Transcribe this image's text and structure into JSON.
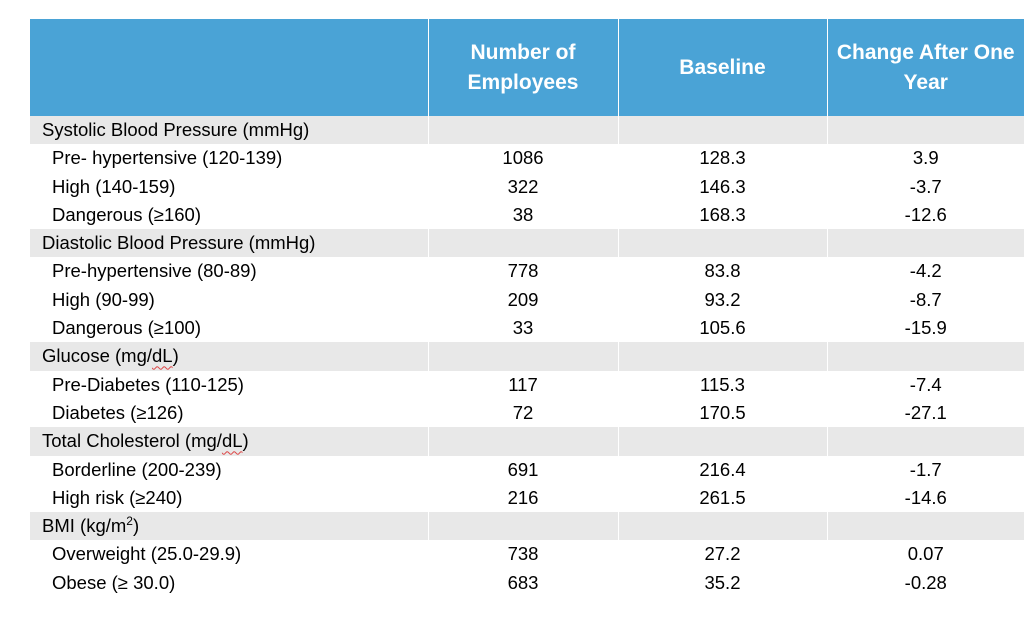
{
  "header": {
    "col1": "Number of Employees",
    "col2": "Baseline",
    "col3": "Change After One Year"
  },
  "sections": [
    {
      "title_prefix": "Systolic Blood Pressure (mmHg)",
      "rows": [
        {
          "label": "Pre- hypertensive (120-139)",
          "employees": "1086",
          "baseline": "128.3",
          "change": "3.9"
        },
        {
          "label": "High (140-159)",
          "employees": "322",
          "baseline": "146.3",
          "change": "-3.7"
        },
        {
          "label": "Dangerous (≥160)",
          "employees": "38",
          "baseline": "168.3",
          "change": "-12.6"
        }
      ]
    },
    {
      "title_prefix": "Diastolic Blood Pressure (mmHg)",
      "rows": [
        {
          "label": "Pre-hypertensive (80-89)",
          "employees": "778",
          "baseline": "83.8",
          "change": "-4.2"
        },
        {
          "label": "High (90-99)",
          "employees": "209",
          "baseline": "93.2",
          "change": "-8.7"
        },
        {
          "label": "Dangerous (≥100)",
          "employees": "33",
          "baseline": "105.6",
          "change": "-15.9"
        }
      ]
    },
    {
      "title_prefix": "Glucose (mg/",
      "title_wavy": "dL",
      "title_suffix": ")",
      "rows": [
        {
          "label": "Pre-Diabetes (110-125)",
          "employees": "117",
          "baseline": "115.3",
          "change": "-7.4"
        },
        {
          "label": "Diabetes (≥126)",
          "employees": "72",
          "baseline": "170.5",
          "change": "-27.1"
        }
      ]
    },
    {
      "title_prefix": "Total Cholesterol (mg/",
      "title_wavy": "dL",
      "title_suffix": ")",
      "rows": [
        {
          "label": "Borderline (200-239)",
          "employees": "691",
          "baseline": "216.4",
          "change": "-1.7"
        },
        {
          "label": "High risk (≥240)",
          "employees": "216",
          "baseline": "261.5",
          "change": "-14.6"
        }
      ]
    },
    {
      "title_prefix": "BMI (kg/m",
      "title_sup": "2",
      "title_suffix": ")",
      "rows": [
        {
          "label": "Overweight (25.0-29.9)",
          "employees": "738",
          "baseline": "27.2",
          "change": "0.07"
        },
        {
          "label": "Obese (≥ 30.0)",
          "employees": "683",
          "baseline": "35.2",
          "change": "-0.28"
        }
      ]
    }
  ]
}
